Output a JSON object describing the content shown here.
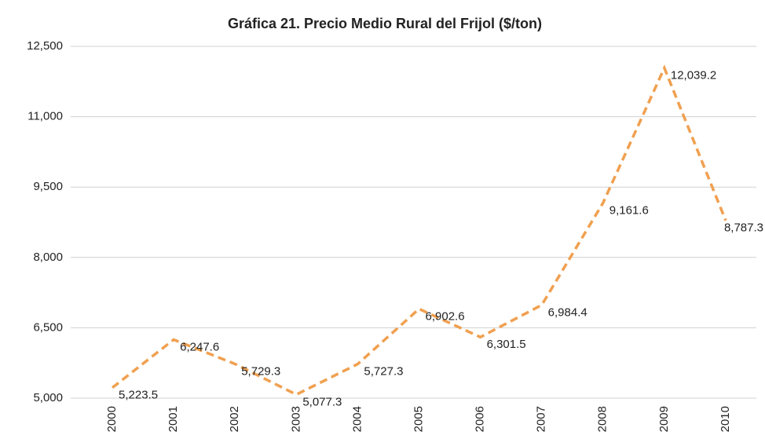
{
  "chart_data": {
    "type": "line",
    "title": "Gráfica 21. Precio Medio Rural del Frijol ($/ton)",
    "categories": [
      "2000",
      "2001",
      "2002",
      "2003",
      "2004",
      "2005",
      "2006",
      "2007",
      "2008",
      "2009",
      "2010"
    ],
    "series": [
      {
        "name": "Precio Medio Rural",
        "color": "#f0a050",
        "values": [
          5223.5,
          6247.6,
          5729.3,
          5077.3,
          5727.3,
          6902.6,
          6301.5,
          6984.4,
          9161.6,
          12039.2,
          8787.3
        ],
        "value_labels": [
          "5,223.5",
          "6,247.6",
          "5,729.3",
          "5,077.3",
          "5,727.3",
          "6,902.6",
          "6,301.5",
          "6,984.4",
          "9,161.6",
          "12,039.2",
          "8,787.3"
        ]
      }
    ],
    "ylim": [
      5000,
      12500
    ],
    "yticks": [
      {
        "value": 5000,
        "label": "5,000"
      },
      {
        "value": 6500,
        "label": "6,500"
      },
      {
        "value": 8000,
        "label": "8,000"
      },
      {
        "value": 9500,
        "label": "9,500"
      },
      {
        "value": 11000,
        "label": "11,000"
      },
      {
        "value": 12500,
        "label": "12,500"
      }
    ],
    "grid": true
  }
}
